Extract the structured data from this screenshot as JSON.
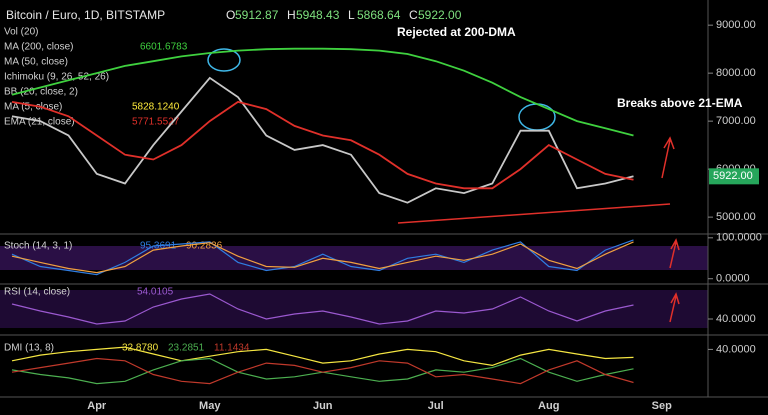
{
  "header": {
    "title": "Bitcoin / Euro, 1D, BITSTAMP",
    "ohlc": [
      {
        "key": "O",
        "value": "5912.87"
      },
      {
        "key": "H",
        "value": "5948.43"
      },
      {
        "key": "L",
        "value": "5868.64"
      },
      {
        "key": "C",
        "value": "5922.00"
      }
    ]
  },
  "indicators": [
    {
      "name": "Vol (20)"
    },
    {
      "name": "MA (200, close)",
      "value": "6601.6783",
      "color": "#3fd13f"
    },
    {
      "name": "MA (50, close)"
    },
    {
      "name": "Ichimoku (9, 26, 52, 26)"
    },
    {
      "name": "BB (20, close, 2)"
    },
    {
      "name": "MA (5, close)",
      "value": "5828.1240",
      "color": "#ffeb3b"
    },
    {
      "name": "EMA (21, close)",
      "value": "5771.5527",
      "color": "#e0302a"
    }
  ],
  "chart_data": [
    {
      "type": "line",
      "last_price_label": "5922.00",
      "annotations": [
        "Rejected at 200-DMA",
        "Breaks above 21-EMA"
      ],
      "categories": [
        null,
        null,
        null,
        "Apr",
        null,
        null,
        null,
        "May",
        null,
        null,
        null,
        "Jun",
        null,
        null,
        null,
        "Jul",
        null,
        null,
        null,
        "Aug",
        null,
        null,
        null,
        "Sep"
      ],
      "ylim": [
        4690,
        9420
      ],
      "yticks": [
        {
          "value": 5000,
          "label": "5000.00"
        },
        {
          "value": 6000,
          "label": "6000.00"
        },
        {
          "value": 7000,
          "label": "7000.00"
        },
        {
          "value": 8000,
          "label": "8000.00"
        },
        {
          "value": 9000,
          "label": "9000.00"
        }
      ],
      "series": [
        {
          "name": "Close",
          "color": "#c8c8c8",
          "values": [
            7100,
            7000,
            6700,
            5900,
            5700,
            6500,
            7200,
            7900,
            7500,
            6700,
            6400,
            6500,
            6300,
            5500,
            5300,
            5600,
            5500,
            5700,
            6800,
            6800,
            5600,
            5700,
            5850,
            null
          ]
        },
        {
          "name": "200-DMA",
          "color": "#3fd13f",
          "values": [
            7550,
            7700,
            7850,
            8000,
            8150,
            8250,
            8350,
            8420,
            8470,
            8500,
            8510,
            8510,
            8500,
            8470,
            8400,
            8250,
            8050,
            7800,
            7500,
            7250,
            7000,
            6850,
            6700,
            null
          ]
        },
        {
          "name": "21-EMA",
          "color": "#e0302a",
          "values": [
            7400,
            7300,
            7100,
            6700,
            6300,
            6200,
            6500,
            7000,
            7400,
            7250,
            6900,
            6700,
            6600,
            6300,
            5900,
            5700,
            5600,
            5600,
            6000,
            6500,
            6200,
            5900,
            5780,
            null
          ]
        }
      ]
    },
    {
      "type": "line",
      "title": "Stoch (14, 3, 1)",
      "ylim": [
        -8,
        102
      ],
      "yticks": [
        {
          "value": 0,
          "label": "0.0000"
        },
        {
          "value": 100,
          "label": "100.0000"
        }
      ],
      "series": [
        {
          "name": "95.3691",
          "color": "#2f7de1",
          "values": [
            60,
            30,
            20,
            10,
            40,
            80,
            85,
            90,
            40,
            20,
            30,
            60,
            30,
            20,
            50,
            60,
            40,
            70,
            90,
            30,
            20,
            70,
            95,
            null
          ]
        },
        {
          "name": "90.2836",
          "color": "#f0a040",
          "values": [
            55,
            40,
            25,
            15,
            30,
            70,
            80,
            88,
            55,
            30,
            28,
            50,
            40,
            25,
            40,
            55,
            45,
            60,
            85,
            45,
            25,
            60,
            90,
            null
          ]
        }
      ]
    },
    {
      "type": "line",
      "title": "RSI (14, close)",
      "ylim": [
        26,
        72
      ],
      "yticks": [
        {
          "value": 40,
          "label": "40.0000"
        }
      ],
      "series": [
        {
          "name": "54.0105",
          "color": "#9b59d0",
          "values": [
            55,
            48,
            42,
            35,
            38,
            52,
            60,
            65,
            50,
            40,
            45,
            48,
            42,
            35,
            38,
            48,
            46,
            50,
            62,
            48,
            38,
            48,
            54,
            null
          ]
        }
      ]
    },
    {
      "type": "line",
      "title": "DMI (13, 8)",
      "ylim": [
        0,
        50
      ],
      "yticks": [
        {
          "value": 40,
          "label": "40.0000"
        }
      ],
      "series": [
        {
          "name": "32.8780",
          "color": "#f5e642",
          "values": [
            30,
            35,
            38,
            40,
            42,
            36,
            30,
            34,
            38,
            40,
            34,
            28,
            30,
            36,
            40,
            38,
            30,
            26,
            35,
            40,
            36,
            32,
            33,
            null
          ]
        },
        {
          "name": "23.2851",
          "color": "#4caf50",
          "values": [
            22,
            18,
            15,
            10,
            12,
            22,
            30,
            32,
            20,
            14,
            16,
            20,
            16,
            12,
            14,
            22,
            20,
            24,
            32,
            20,
            12,
            18,
            23,
            null
          ]
        },
        {
          "name": "11.1434",
          "color": "#c0392b",
          "values": [
            20,
            24,
            28,
            32,
            30,
            18,
            12,
            10,
            20,
            28,
            26,
            20,
            24,
            30,
            28,
            16,
            18,
            14,
            10,
            22,
            30,
            18,
            11,
            null
          ]
        }
      ]
    }
  ]
}
